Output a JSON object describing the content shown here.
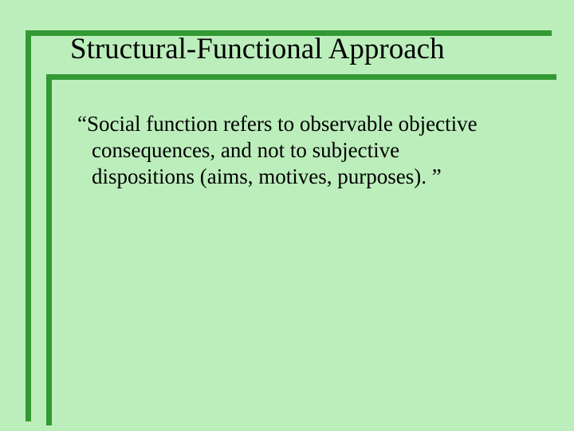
{
  "slide": {
    "title": "Structural-Functional Approach",
    "body_line1": "“Social function refers to observable objective",
    "body_line2": "consequences, and not to subjective",
    "body_line3": "dispositions (aims, motives, purposes). ”"
  },
  "style": {
    "background_color": "#bceebc",
    "frame_color": "#339933",
    "frame_stroke_width": 7,
    "title_fontsize": 37,
    "body_fontsize": 27,
    "text_color": "#000000",
    "font_family": "Times New Roman"
  }
}
